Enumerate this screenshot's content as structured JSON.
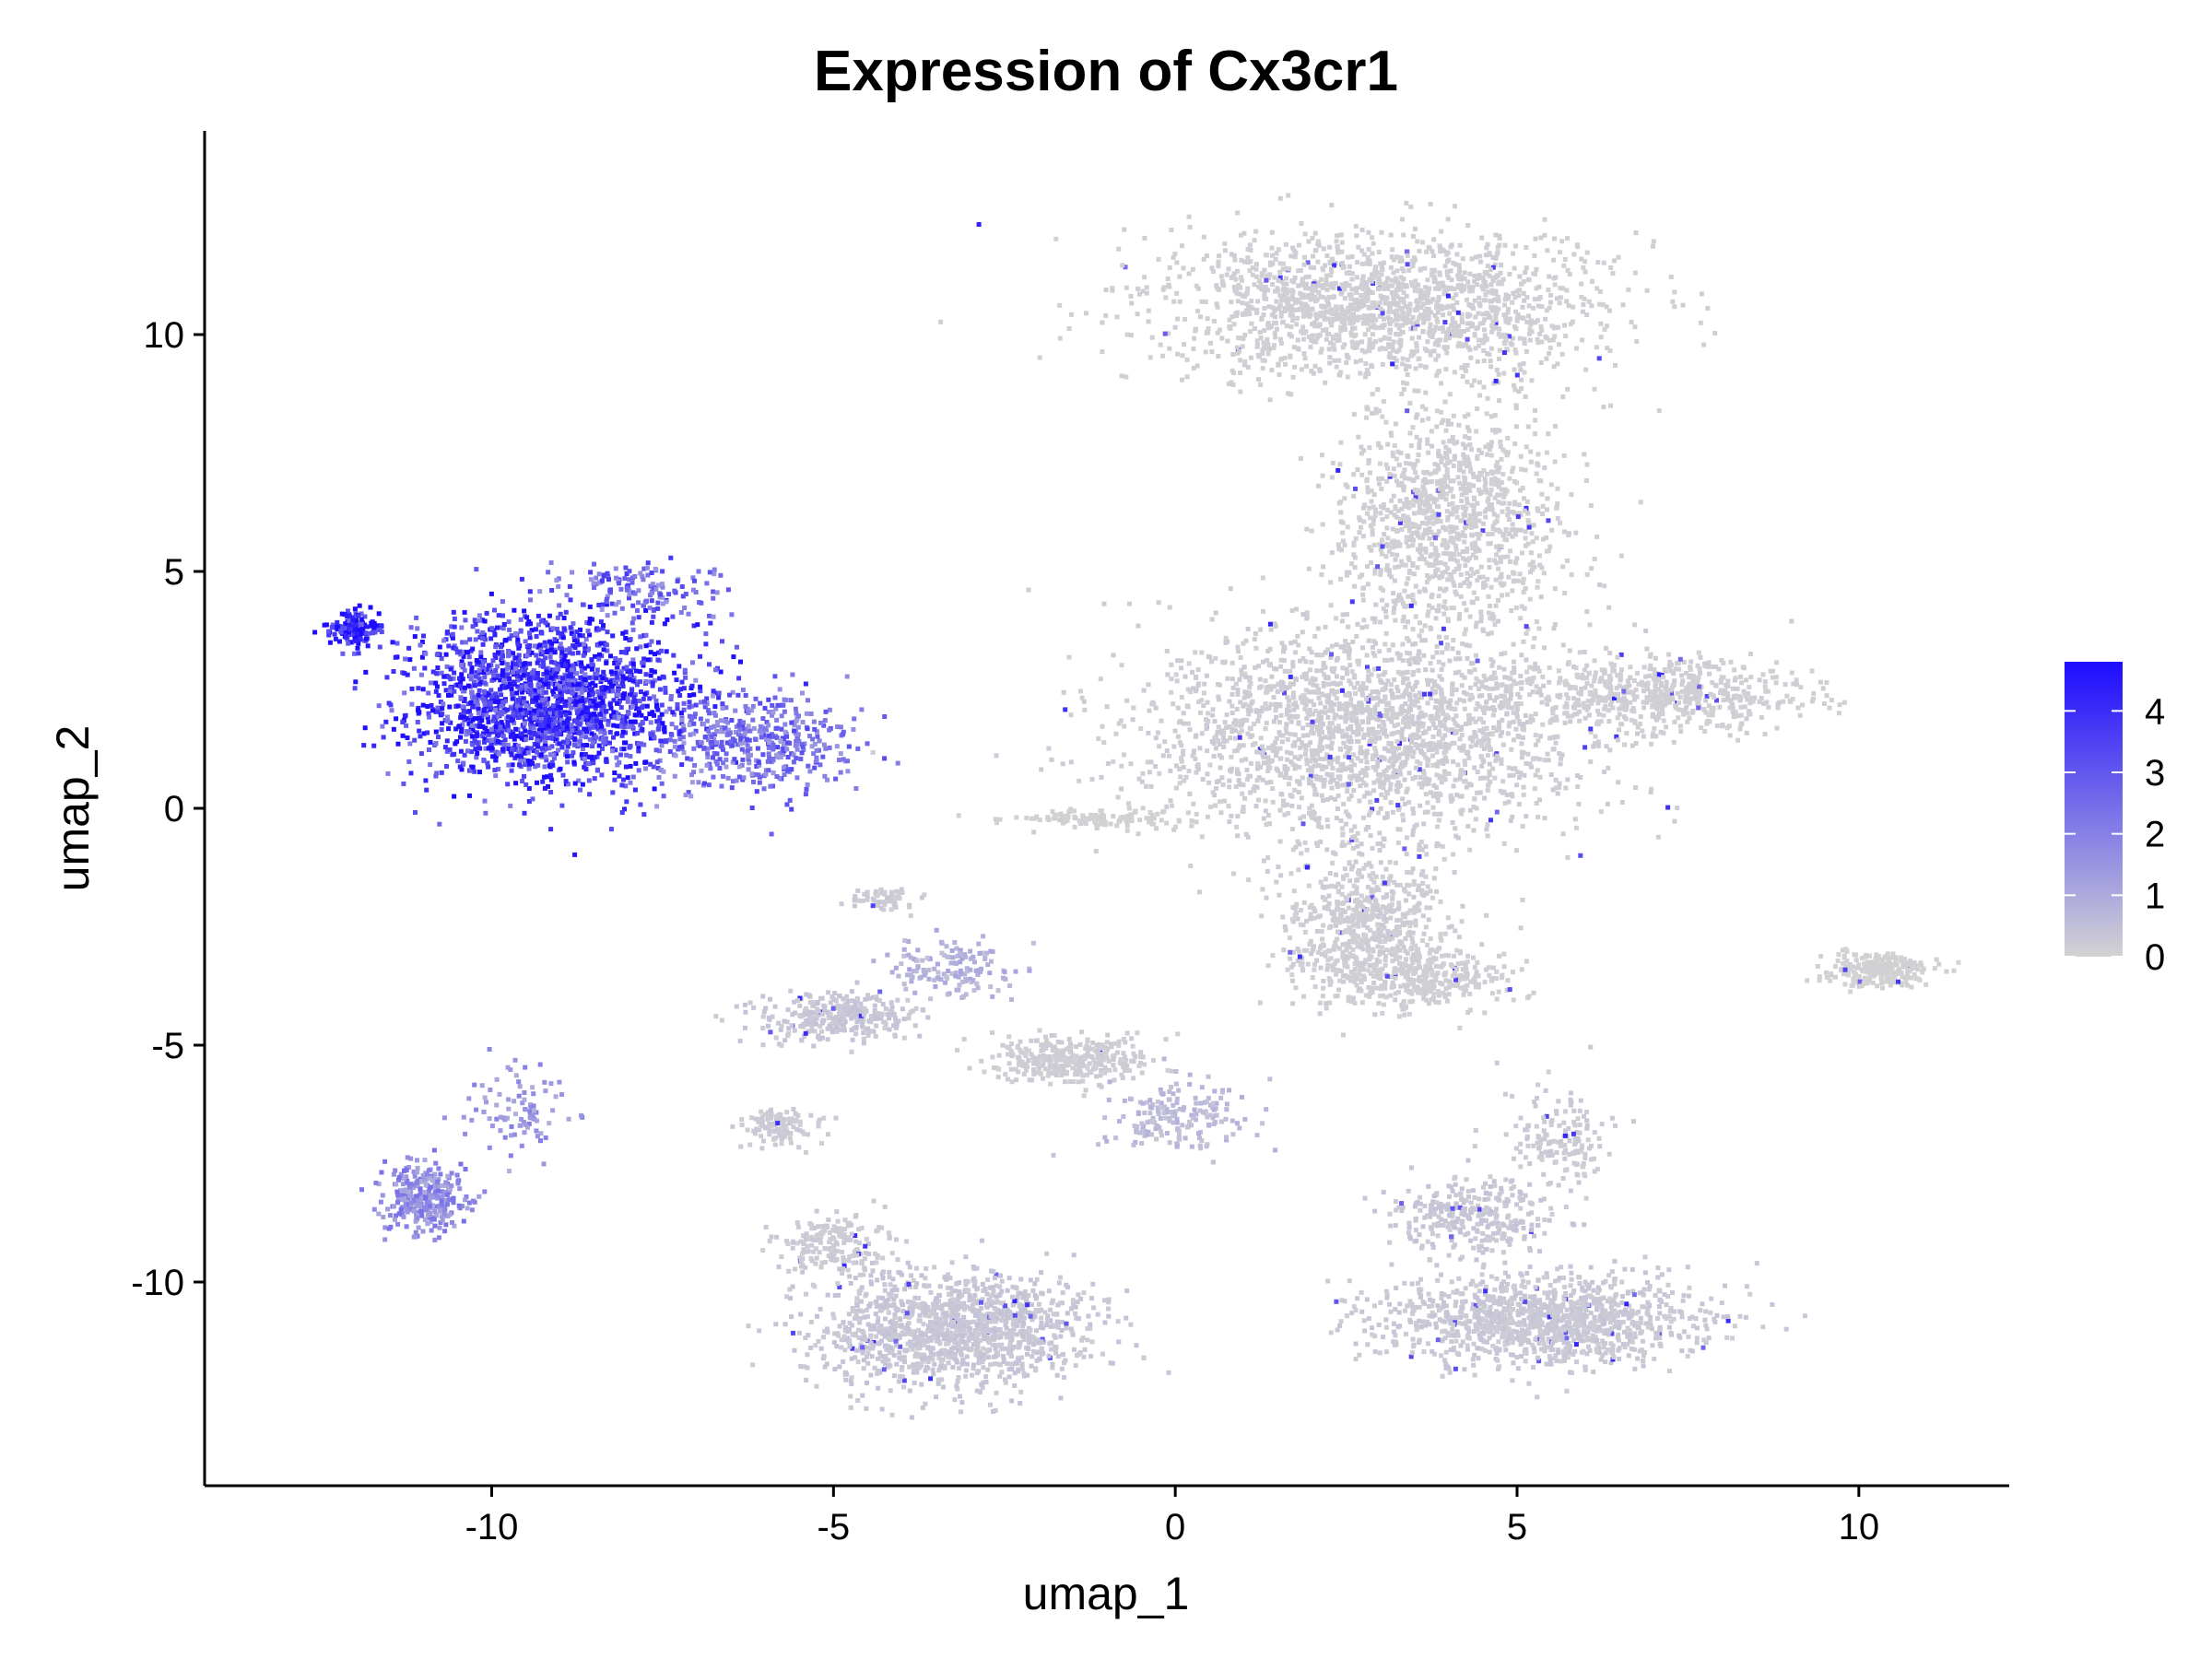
{
  "chart_data": {
    "type": "scatter",
    "title": "Expression of Cx3cr1",
    "xlabel": "umap_1",
    "ylabel": "umap_2",
    "xlim": [
      -14.2,
      12.2
    ],
    "ylim": [
      -14.3,
      14.3
    ],
    "x_ticks": [
      -10,
      -5,
      0,
      5,
      10
    ],
    "x_tick_labels": [
      "-10",
      "-5",
      "0",
      "5",
      "10"
    ],
    "y_ticks": [
      -10,
      -5,
      0,
      5,
      10
    ],
    "y_tick_labels": [
      "-10",
      "-5",
      "0",
      "5",
      "10"
    ],
    "grid": false,
    "colorbar": {
      "range": [
        0,
        4.8
      ],
      "ticks": [
        0,
        1,
        2,
        3,
        4
      ],
      "tick_labels": [
        "0",
        "1",
        "2",
        "3",
        "4"
      ],
      "low_color": "#d3d3d3",
      "high_color": "#1d0cff",
      "placement": "right"
    },
    "clusters": [
      {
        "id": "top-hook",
        "cx": 3.0,
        "cy": 10.6,
        "sx": 2.6,
        "sy": 1.2,
        "expr": 0.1,
        "count": 1700
      },
      {
        "id": "upper-stem",
        "cx": 4.0,
        "cy": 6.2,
        "sx": 1.3,
        "sy": 2.0,
        "expr": 0.1,
        "count": 1100
      },
      {
        "id": "central-mass",
        "cx": 2.8,
        "cy": 1.6,
        "sx": 2.6,
        "sy": 1.8,
        "expr": 0.15,
        "count": 2200
      },
      {
        "id": "right-oval",
        "cx": 7.1,
        "cy": 2.4,
        "sx": 1.6,
        "sy": 0.6,
        "expr": 0.1,
        "count": 600
      },
      {
        "id": "left-dense",
        "cx": -9.2,
        "cy": 2.3,
        "sx": 1.6,
        "sy": 1.4,
        "expr": 3.7,
        "count": 2000
      },
      {
        "id": "left-tip",
        "cx": -12.0,
        "cy": 3.8,
        "sx": 0.3,
        "sy": 0.3,
        "expr": 4.6,
        "count": 150
      },
      {
        "id": "left-fan",
        "cx": -6.2,
        "cy": 1.4,
        "sx": 1.2,
        "sy": 0.8,
        "expr": 2.4,
        "count": 450
      },
      {
        "id": "left-upper-streak",
        "cx": -7.8,
        "cy": 4.6,
        "sx": 1.0,
        "sy": 0.5,
        "expr": 2.6,
        "count": 140
      },
      {
        "id": "bottom-left-blob",
        "cx": -11.0,
        "cy": -8.2,
        "sx": 0.5,
        "sy": 0.6,
        "expr": 1.7,
        "count": 300
      },
      {
        "id": "bottom-left-tail",
        "cx": -9.6,
        "cy": -6.4,
        "sx": 0.6,
        "sy": 0.8,
        "expr": 1.5,
        "count": 90
      },
      {
        "id": "bottom-center-big",
        "cx": -3.2,
        "cy": -11.0,
        "sx": 1.6,
        "sy": 1.0,
        "expr": 0.3,
        "count": 1300
      },
      {
        "id": "bottom-center-arm",
        "cx": -5.0,
        "cy": -9.2,
        "sx": 0.6,
        "sy": 0.5,
        "expr": 0.2,
        "count": 180
      },
      {
        "id": "bottom-right-big",
        "cx": 5.3,
        "cy": -10.8,
        "sx": 1.9,
        "sy": 0.8,
        "expr": 0.25,
        "count": 1200
      },
      {
        "id": "bottom-right-upper",
        "cx": 4.4,
        "cy": -8.6,
        "sx": 1.0,
        "sy": 0.6,
        "expr": 0.3,
        "count": 300
      },
      {
        "id": "bottom-right-arm",
        "cx": 5.6,
        "cy": -7.0,
        "sx": 0.6,
        "sy": 0.9,
        "expr": 0.2,
        "count": 160
      },
      {
        "id": "mid-lower-stem",
        "cx": 2.8,
        "cy": -2.4,
        "sx": 0.9,
        "sy": 1.2,
        "expr": 0.15,
        "count": 600
      },
      {
        "id": "mid-lower-right",
        "cx": 3.6,
        "cy": -3.6,
        "sx": 1.1,
        "sy": 0.5,
        "expr": 0.1,
        "count": 350
      },
      {
        "id": "mid-lower-oval",
        "cx": -1.5,
        "cy": -5.3,
        "sx": 0.9,
        "sy": 0.4,
        "expr": 0.15,
        "count": 350
      },
      {
        "id": "left-lower-oval",
        "cx": -4.9,
        "cy": -4.4,
        "sx": 0.9,
        "sy": 0.4,
        "expr": 0.3,
        "count": 320
      },
      {
        "id": "left-mid-streak",
        "cx": -3.2,
        "cy": -3.4,
        "sx": 0.8,
        "sy": 0.5,
        "expr": 0.8,
        "count": 140
      },
      {
        "id": "small-left-blob",
        "cx": -5.8,
        "cy": -6.7,
        "sx": 0.4,
        "sy": 0.3,
        "expr": 0.2,
        "count": 120
      },
      {
        "id": "small-center-blob",
        "cx": -4.3,
        "cy": -1.9,
        "sx": 0.4,
        "sy": 0.2,
        "expr": 0.2,
        "count": 60
      },
      {
        "id": "lower-connector",
        "cx": 0.0,
        "cy": -6.5,
        "sx": 0.9,
        "sy": 0.6,
        "expr": 0.6,
        "count": 180
      },
      {
        "id": "center-line",
        "cx": -1.2,
        "cy": -0.2,
        "sx": 1.1,
        "sy": 0.15,
        "expr": 0.05,
        "count": 120
      },
      {
        "id": "far-right-blob",
        "cx": 10.3,
        "cy": -3.4,
        "sx": 0.6,
        "sy": 0.3,
        "expr": 0.05,
        "count": 260
      }
    ]
  }
}
